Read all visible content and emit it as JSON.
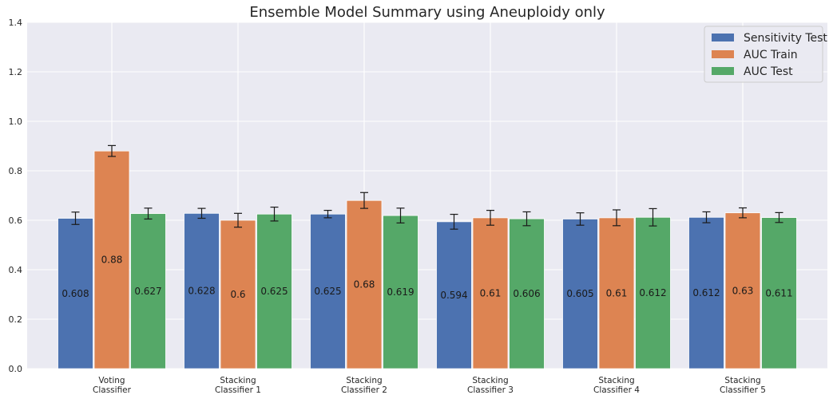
{
  "chart_data": {
    "type": "bar",
    "title": "Ensemble Model Summary using Aneuploidy only",
    "xlabel": "",
    "ylabel": "",
    "ylim": [
      0,
      1.4
    ],
    "yticks": [
      "0.0",
      "0.2",
      "0.4",
      "0.6",
      "0.8",
      "1.0",
      "1.2",
      "1.4"
    ],
    "grid": true,
    "legend_position": "top-right",
    "categories": [
      [
        "Voting",
        "Classifier"
      ],
      [
        "Stacking",
        "Classifier 1"
      ],
      [
        "Stacking",
        "Classifier 2"
      ],
      [
        "Stacking",
        "Classifier 3"
      ],
      [
        "Stacking",
        "Classifier 4"
      ],
      [
        "Stacking",
        "Classifier 5"
      ]
    ],
    "series": [
      {
        "name": "Sensitivity Test",
        "color": "#4c72b0",
        "values": [
          0.608,
          0.628,
          0.625,
          0.594,
          0.605,
          0.612
        ],
        "labels": [
          "0.608",
          "0.628",
          "0.625",
          "0.594",
          "0.605",
          "0.612"
        ],
        "errors": [
          0.025,
          0.02,
          0.015,
          0.03,
          0.025,
          0.022
        ]
      },
      {
        "name": "AUC Train",
        "color": "#dd8452",
        "values": [
          0.88,
          0.6,
          0.68,
          0.61,
          0.61,
          0.63
        ],
        "labels": [
          "0.88",
          "0.6",
          "0.68",
          "0.61",
          "0.61",
          "0.63"
        ],
        "errors": [
          0.022,
          0.028,
          0.032,
          0.03,
          0.032,
          0.02
        ]
      },
      {
        "name": "AUC Test",
        "color": "#55a868",
        "values": [
          0.627,
          0.625,
          0.619,
          0.606,
          0.612,
          0.611
        ],
        "labels": [
          "0.627",
          "0.625",
          "0.619",
          "0.606",
          "0.612",
          "0.611"
        ],
        "errors": [
          0.022,
          0.028,
          0.03,
          0.028,
          0.035,
          0.02
        ]
      }
    ]
  }
}
